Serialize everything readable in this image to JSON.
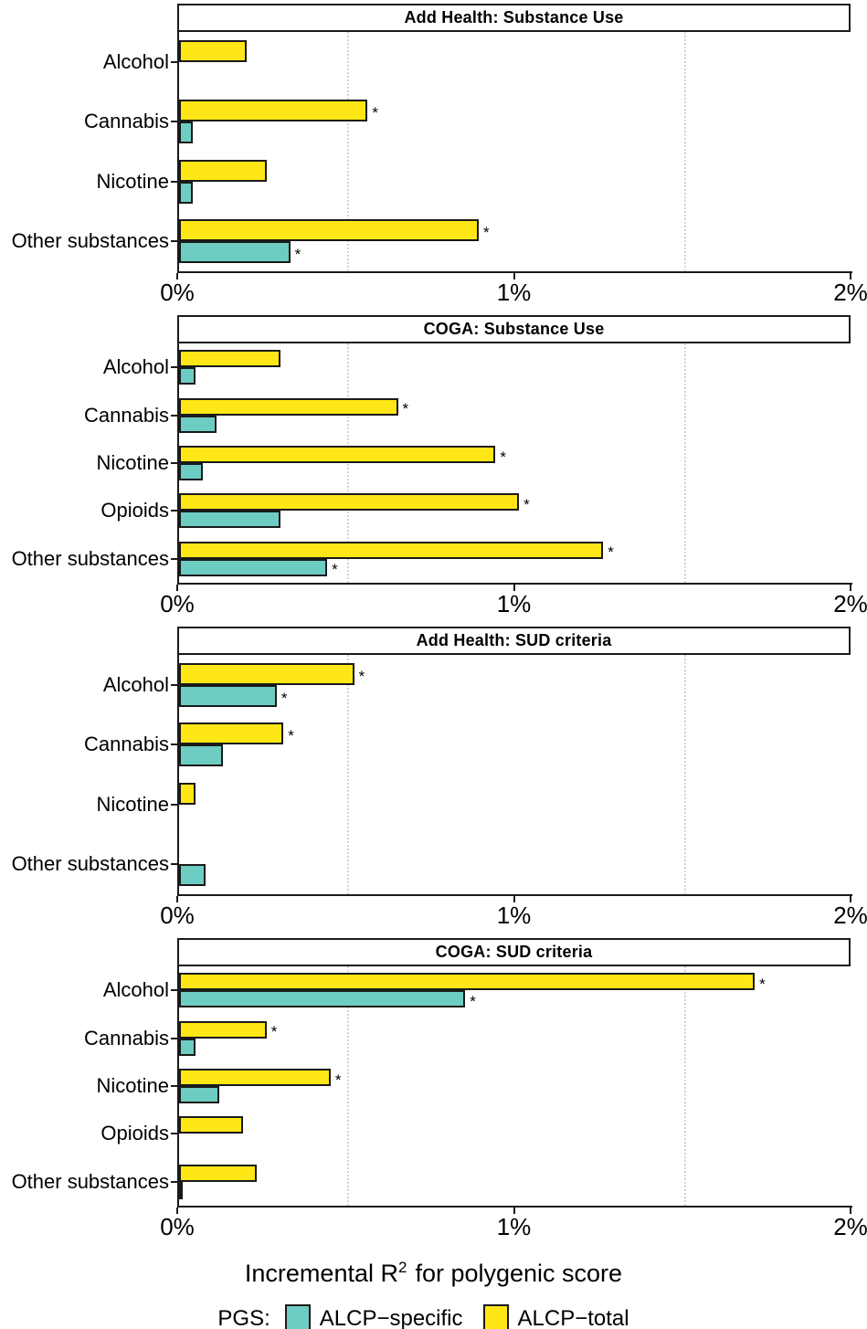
{
  "figure": {
    "axis_title": {
      "prefix": "Incremental R",
      "sup": "2",
      "suffix": "for polygenic score"
    },
    "legend": {
      "title": "PGS:",
      "items": [
        {
          "label": "ALCP−specific",
          "color": "#6DCDC3"
        },
        {
          "label": "ALCP−total",
          "color": "#FFE616"
        }
      ]
    },
    "colors": {
      "teal": "#6DCDC3",
      "yellow": "#FFE616",
      "bar_border": "#1a1a1a",
      "gridline": "#d4d4d4"
    },
    "significance_marker": "*"
  },
  "chart_data": {
    "type": "bar",
    "orientation": "horizontal",
    "unit": "percent",
    "x_axis": {
      "label": "Incremental R2 for polygenic score",
      "range": [
        0,
        2
      ],
      "ticks": [
        {
          "value": 0,
          "label": "0%"
        },
        {
          "value": 1,
          "label": "1%"
        },
        {
          "value": 2,
          "label": "2%"
        }
      ],
      "minor_gridlines": [
        0.5,
        1.5
      ]
    },
    "legend_position": "bottom",
    "panels": [
      {
        "title": "Add Health: Substance Use",
        "categories": [
          "Alcohol",
          "Cannabis",
          "Nicotine",
          "Other substances"
        ],
        "series": [
          {
            "name": "ALCP-total",
            "color": "#FFE616",
            "values": [
              0.2,
              0.56,
              0.26,
              0.89
            ],
            "significant": [
              false,
              true,
              false,
              true
            ]
          },
          {
            "name": "ALCP-specific",
            "color": "#6DCDC3",
            "values": [
              0.0,
              0.04,
              0.04,
              0.33
            ],
            "significant": [
              false,
              false,
              false,
              true
            ]
          }
        ]
      },
      {
        "title": "COGA: Substance Use",
        "categories": [
          "Alcohol",
          "Cannabis",
          "Nicotine",
          "Opioids",
          "Other substances"
        ],
        "series": [
          {
            "name": "ALCP-total",
            "color": "#FFE616",
            "values": [
              0.3,
              0.65,
              0.94,
              1.01,
              1.26
            ],
            "significant": [
              false,
              true,
              true,
              true,
              true
            ]
          },
          {
            "name": "ALCP-specific",
            "color": "#6DCDC3",
            "values": [
              0.05,
              0.11,
              0.07,
              0.3,
              0.44
            ],
            "significant": [
              false,
              false,
              false,
              false,
              true
            ]
          }
        ]
      },
      {
        "title": "Add Health: SUD criteria",
        "categories": [
          "Alcohol",
          "Cannabis",
          "Nicotine",
          "Other substances"
        ],
        "series": [
          {
            "name": "ALCP-total",
            "color": "#FFE616",
            "values": [
              0.52,
              0.31,
              0.05,
              0.0
            ],
            "significant": [
              true,
              true,
              false,
              false
            ]
          },
          {
            "name": "ALCP-specific",
            "color": "#6DCDC3",
            "values": [
              0.29,
              0.13,
              0.0,
              0.08
            ],
            "significant": [
              true,
              false,
              false,
              false
            ]
          }
        ]
      },
      {
        "title": "COGA: SUD criteria",
        "categories": [
          "Alcohol",
          "Cannabis",
          "Nicotine",
          "Opioids",
          "Other substances"
        ],
        "series": [
          {
            "name": "ALCP-total",
            "color": "#FFE616",
            "values": [
              1.71,
              0.26,
              0.45,
              0.19,
              0.23
            ],
            "significant": [
              true,
              true,
              true,
              false,
              false
            ]
          },
          {
            "name": "ALCP-specific",
            "color": "#6DCDC3",
            "values": [
              0.85,
              0.05,
              0.12,
              0.0,
              0.01
            ],
            "significant": [
              true,
              false,
              false,
              false,
              false
            ]
          }
        ]
      }
    ]
  }
}
